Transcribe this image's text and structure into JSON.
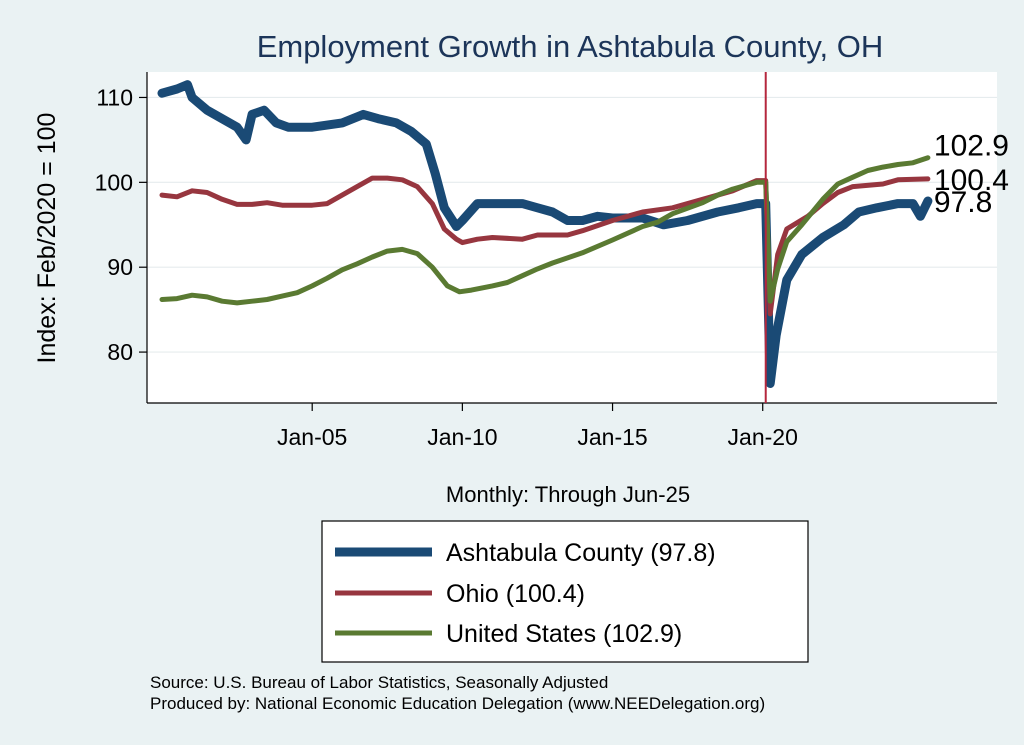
{
  "chart_data": {
    "type": "line",
    "title": "Employment Growth in Ashtabula  County, OH",
    "xlabel": "Monthly: Through Jun-25",
    "ylabel": "Index: Feb/2020 = 100",
    "x_range": [
      1999.5,
      2027.8
    ],
    "ylim": [
      74,
      113
    ],
    "x_ticks": [
      {
        "label": "Jan-05",
        "value": 2005
      },
      {
        "label": "Jan-10",
        "value": 2010
      },
      {
        "label": "Jan-15",
        "value": 2015
      },
      {
        "label": "Jan-20",
        "value": 2020
      }
    ],
    "y_ticks": [
      {
        "label": "80",
        "value": 80
      },
      {
        "label": "90",
        "value": 90
      },
      {
        "label": "100",
        "value": 100
      },
      {
        "label": "110",
        "value": 110
      }
    ],
    "reference_line": {
      "x": 2020.1,
      "color": "#b5273d"
    },
    "series": [
      {
        "name": "Ashtabula  County (97.8)",
        "color": "#1a4a75",
        "end_label": "97.8",
        "points": [
          [
            2000.0,
            110.5
          ],
          [
            2000.5,
            111.0
          ],
          [
            2000.85,
            111.5
          ],
          [
            2001.0,
            110.0
          ],
          [
            2001.5,
            108.5
          ],
          [
            2002.0,
            107.5
          ],
          [
            2002.5,
            106.5
          ],
          [
            2002.8,
            105.0
          ],
          [
            2003.0,
            108.0
          ],
          [
            2003.4,
            108.5
          ],
          [
            2003.8,
            107.0
          ],
          [
            2004.2,
            106.5
          ],
          [
            2005.0,
            106.5
          ],
          [
            2006.0,
            107.0
          ],
          [
            2006.7,
            108.0
          ],
          [
            2007.2,
            107.5
          ],
          [
            2007.8,
            107.0
          ],
          [
            2008.3,
            106.0
          ],
          [
            2008.8,
            104.5
          ],
          [
            2009.1,
            101.0
          ],
          [
            2009.4,
            97.0
          ],
          [
            2009.8,
            94.8
          ],
          [
            2010.0,
            95.5
          ],
          [
            2010.5,
            97.5
          ],
          [
            2011.0,
            97.5
          ],
          [
            2012.0,
            97.5
          ],
          [
            2012.5,
            97.0
          ],
          [
            2013.0,
            96.5
          ],
          [
            2013.5,
            95.5
          ],
          [
            2014.0,
            95.5
          ],
          [
            2014.5,
            96.0
          ],
          [
            2015.0,
            95.8
          ],
          [
            2016.0,
            95.8
          ],
          [
            2016.7,
            95.0
          ],
          [
            2017.5,
            95.5
          ],
          [
            2018.5,
            96.5
          ],
          [
            2019.2,
            97.0
          ],
          [
            2019.8,
            97.5
          ],
          [
            2020.1,
            97.5
          ],
          [
            2020.25,
            76.3
          ],
          [
            2020.45,
            82.0
          ],
          [
            2020.8,
            88.5
          ],
          [
            2021.3,
            91.5
          ],
          [
            2022.0,
            93.5
          ],
          [
            2022.7,
            95.0
          ],
          [
            2023.2,
            96.5
          ],
          [
            2023.8,
            97.0
          ],
          [
            2024.5,
            97.5
          ],
          [
            2025.0,
            97.5
          ],
          [
            2025.25,
            96.0
          ],
          [
            2025.5,
            97.8
          ]
        ]
      },
      {
        "name": "Ohio (100.4)",
        "color": "#97363f",
        "end_label": "100.4",
        "points": [
          [
            2000.0,
            98.5
          ],
          [
            2000.5,
            98.3
          ],
          [
            2001.0,
            99.0
          ],
          [
            2001.5,
            98.8
          ],
          [
            2002.0,
            98.0
          ],
          [
            2002.5,
            97.4
          ],
          [
            2003.0,
            97.4
          ],
          [
            2003.5,
            97.6
          ],
          [
            2004.0,
            97.3
          ],
          [
            2005.0,
            97.3
          ],
          [
            2005.5,
            97.5
          ],
          [
            2006.0,
            98.5
          ],
          [
            2006.5,
            99.5
          ],
          [
            2007.0,
            100.5
          ],
          [
            2007.5,
            100.5
          ],
          [
            2008.0,
            100.3
          ],
          [
            2008.5,
            99.5
          ],
          [
            2009.0,
            97.5
          ],
          [
            2009.4,
            94.5
          ],
          [
            2009.8,
            93.3
          ],
          [
            2010.0,
            92.9
          ],
          [
            2010.5,
            93.3
          ],
          [
            2011.0,
            93.5
          ],
          [
            2012.0,
            93.3
          ],
          [
            2012.5,
            93.8
          ],
          [
            2013.5,
            93.8
          ],
          [
            2014.0,
            94.3
          ],
          [
            2015.0,
            95.5
          ],
          [
            2016.0,
            96.5
          ],
          [
            2017.0,
            97.0
          ],
          [
            2018.0,
            98.0
          ],
          [
            2019.0,
            99.0
          ],
          [
            2019.8,
            100.2
          ],
          [
            2020.1,
            100.2
          ],
          [
            2020.25,
            84.5
          ],
          [
            2020.5,
            91.5
          ],
          [
            2020.8,
            94.5
          ],
          [
            2021.5,
            96.0
          ],
          [
            2022.0,
            97.5
          ],
          [
            2022.5,
            98.8
          ],
          [
            2023.0,
            99.5
          ],
          [
            2024.0,
            99.8
          ],
          [
            2024.5,
            100.3
          ],
          [
            2025.5,
            100.4
          ]
        ]
      },
      {
        "name": "United States (102.9)",
        "color": "#5a7a32",
        "end_label": "102.9",
        "points": [
          [
            2000.0,
            86.2
          ],
          [
            2000.5,
            86.3
          ],
          [
            2001.0,
            86.7
          ],
          [
            2001.5,
            86.5
          ],
          [
            2002.0,
            86.0
          ],
          [
            2002.5,
            85.8
          ],
          [
            2003.0,
            86.0
          ],
          [
            2003.5,
            86.2
          ],
          [
            2004.0,
            86.6
          ],
          [
            2004.5,
            87.0
          ],
          [
            2005.0,
            87.8
          ],
          [
            2005.5,
            88.7
          ],
          [
            2006.0,
            89.7
          ],
          [
            2006.5,
            90.4
          ],
          [
            2007.0,
            91.2
          ],
          [
            2007.5,
            91.9
          ],
          [
            2008.0,
            92.1
          ],
          [
            2008.5,
            91.6
          ],
          [
            2009.0,
            90.0
          ],
          [
            2009.5,
            87.8
          ],
          [
            2009.9,
            87.1
          ],
          [
            2010.3,
            87.3
          ],
          [
            2011.0,
            87.8
          ],
          [
            2011.5,
            88.2
          ],
          [
            2012.0,
            89.0
          ],
          [
            2012.5,
            89.8
          ],
          [
            2013.0,
            90.5
          ],
          [
            2014.0,
            91.7
          ],
          [
            2015.0,
            93.2
          ],
          [
            2016.0,
            94.8
          ],
          [
            2016.5,
            95.3
          ],
          [
            2017.0,
            96.3
          ],
          [
            2018.0,
            97.6
          ],
          [
            2018.5,
            98.5
          ],
          [
            2019.0,
            99.2
          ],
          [
            2019.8,
            100.0
          ],
          [
            2020.1,
            100.0
          ],
          [
            2020.25,
            86.0
          ],
          [
            2020.5,
            89.8
          ],
          [
            2020.8,
            93.0
          ],
          [
            2021.3,
            95.0
          ],
          [
            2022.0,
            98.0
          ],
          [
            2022.5,
            99.8
          ],
          [
            2023.0,
            100.6
          ],
          [
            2023.5,
            101.4
          ],
          [
            2024.0,
            101.8
          ],
          [
            2024.5,
            102.1
          ],
          [
            2025.0,
            102.3
          ],
          [
            2025.5,
            102.9
          ]
        ]
      }
    ],
    "legend": {
      "placement": "bottom"
    }
  },
  "notes": {
    "source": "Source: U.S. Bureau of Labor Statistics, Seasonally Adjusted",
    "produced": "Produced by: National Economic Education Delegation (www.NEEDelegation.org)"
  }
}
